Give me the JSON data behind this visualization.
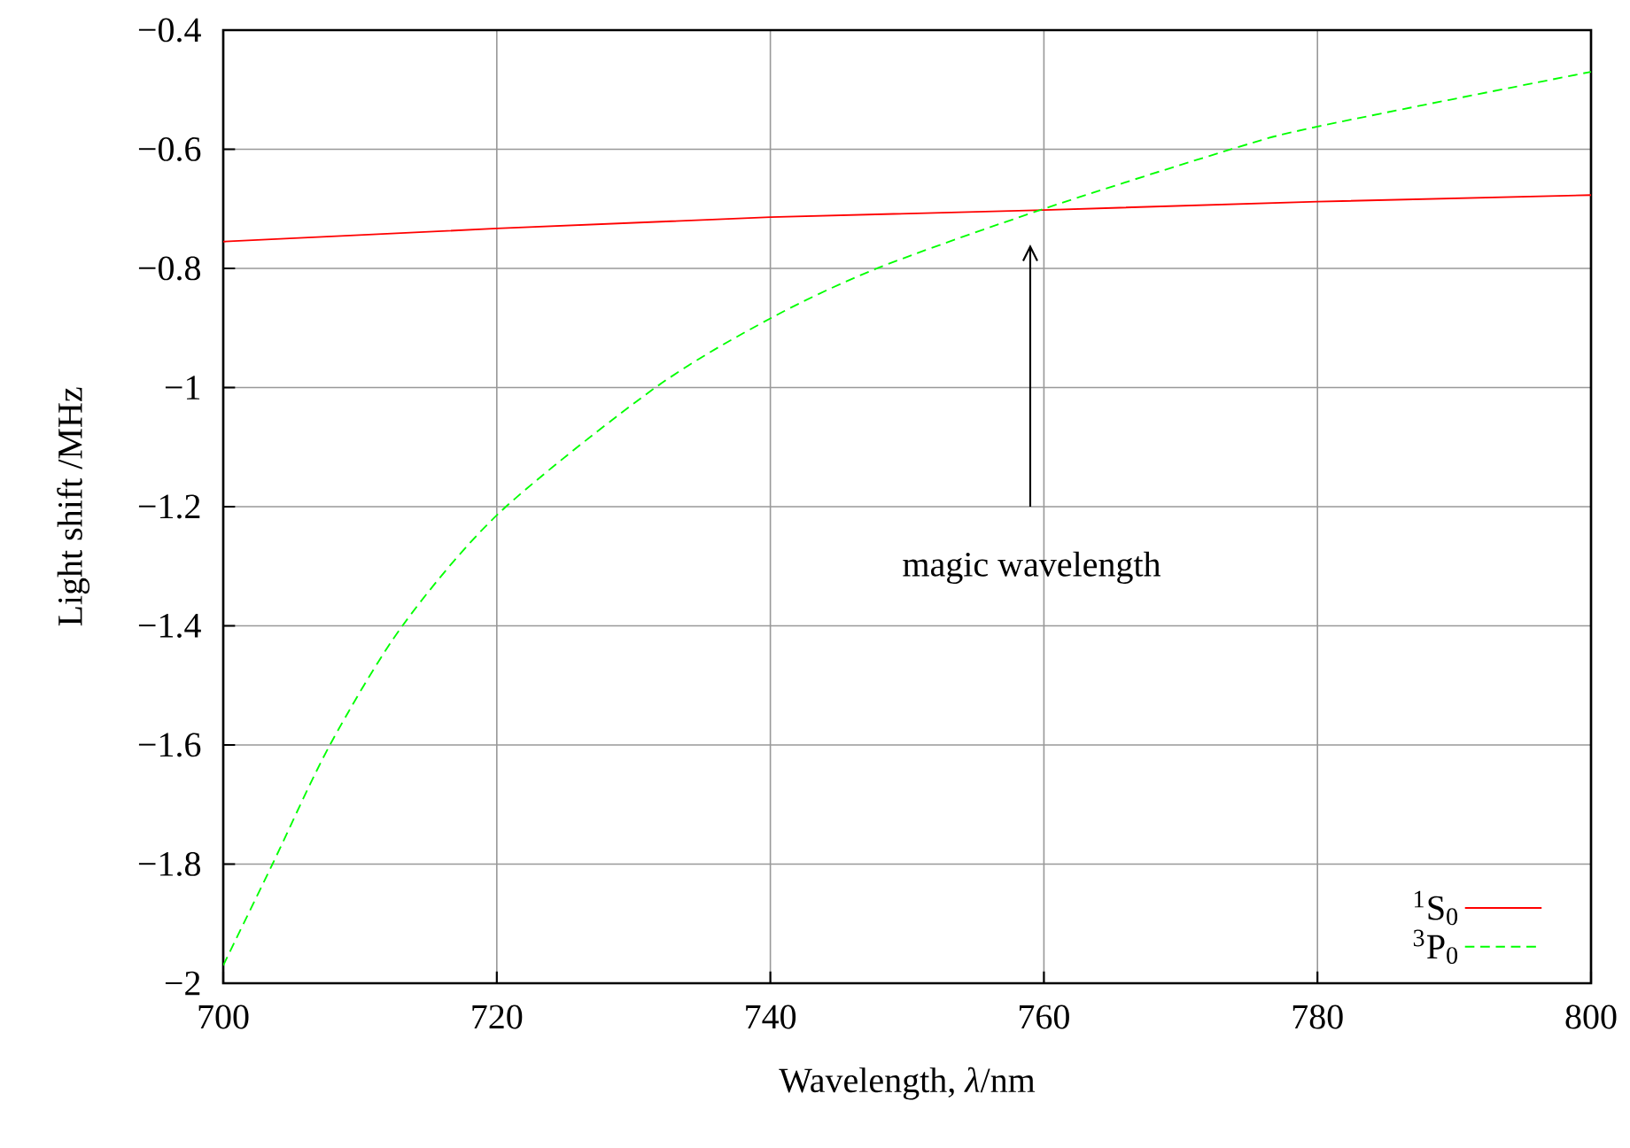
{
  "chart_data": {
    "type": "line",
    "xlabel": "Wavelength, *λ*/nm",
    "ylabel": "Light shift /MHz",
    "xlim": [
      700,
      800
    ],
    "xticks": [
      700,
      720,
      740,
      760,
      780,
      800
    ],
    "ylim": [
      -2,
      -0.4
    ],
    "yticks": [
      {
        "value": -2,
        "label": "−2"
      },
      {
        "value": -1.8,
        "label": "−1.8"
      },
      {
        "value": -1.6,
        "label": "−1.6"
      },
      {
        "value": -1.4,
        "label": "−1.4"
      },
      {
        "value": -1.2,
        "label": "−1.2"
      },
      {
        "value": -1,
        "label": "−1"
      },
      {
        "value": -0.8,
        "label": "−0.8"
      },
      {
        "value": -0.6,
        "label": "−0.6"
      },
      {
        "value": -0.4,
        "label": "−0.4"
      }
    ],
    "grid": true,
    "legend": "bottom right",
    "series": [
      {
        "name": "$^{1}$S$_{0}$",
        "color": "#ff0000",
        "line_style": "solid",
        "x": [
          700,
          720,
          740,
          760,
          780,
          800
        ],
        "values": [
          -0.755,
          -0.733,
          -0.714,
          -0.702,
          -0.688,
          -0.677
        ]
      },
      {
        "name": "$^{3}$P$_{0}$",
        "color": "#00ff00",
        "line_style": "dashed",
        "x": [
          700,
          703.6,
          707.8,
          713.1,
          720.2,
          731.6,
          740,
          747.8,
          760,
          773.7,
          780,
          800
        ],
        "values": [
          -1.97,
          -1.8,
          -1.6,
          -1.4,
          -1.21,
          -1.0,
          -0.884,
          -0.8,
          -0.7,
          -0.6,
          -0.562,
          -0.47
        ]
      }
    ],
    "annotations": [
      "magic wavelength"
    ]
  }
}
